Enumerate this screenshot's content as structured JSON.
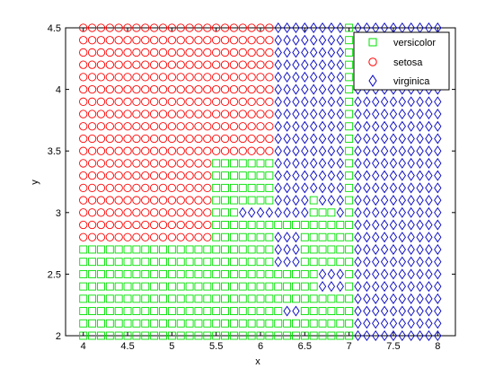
{
  "chart_data": {
    "type": "scatter",
    "title": "",
    "xlabel": "x",
    "ylabel": "y",
    "xlim": [
      3.8,
      8.2
    ],
    "ylim": [
      2.0,
      4.5
    ],
    "x_ticks": [
      "4",
      "4.5",
      "5",
      "5.5",
      "6",
      "6.5",
      "7",
      "7.5",
      "8"
    ],
    "y_ticks": [
      "2",
      "2.5",
      "3",
      "3.5",
      "4",
      "4.5"
    ],
    "grid": false,
    "legend_position": "top-right",
    "grid_step_x": 0.1,
    "grid_step_y": 0.1,
    "series": [
      {
        "name": "versicolor",
        "marker": "square",
        "color": "#00e000",
        "region": "classified as versicolor on the 0.1-spaced grid: x 4.0-6.1 for y<=2.7; x 5.5-6.1 for y 2.8-3.4; x 6.2-6.9 for y<=2.9 (except a few virginica cells); column x=7.0 from y 2.0 to 4.5"
      },
      {
        "name": "setosa",
        "marker": "circle",
        "color": "#ff0000",
        "region": "classified as setosa: x 4.0-6.1 for y>=3.5; x 4.0-5.4 for y 2.8-3.4"
      },
      {
        "name": "virginica",
        "marker": "diamond",
        "color": "#0000c0",
        "region": "classified as virginica: x 7.1-8.0 everywhere; x 6.2-6.9 for y>=3.0; plus scattered cells near (5.8-6.1, 3.0) and (6.2-6.9, 2.2-2.8)"
      }
    ]
  }
}
